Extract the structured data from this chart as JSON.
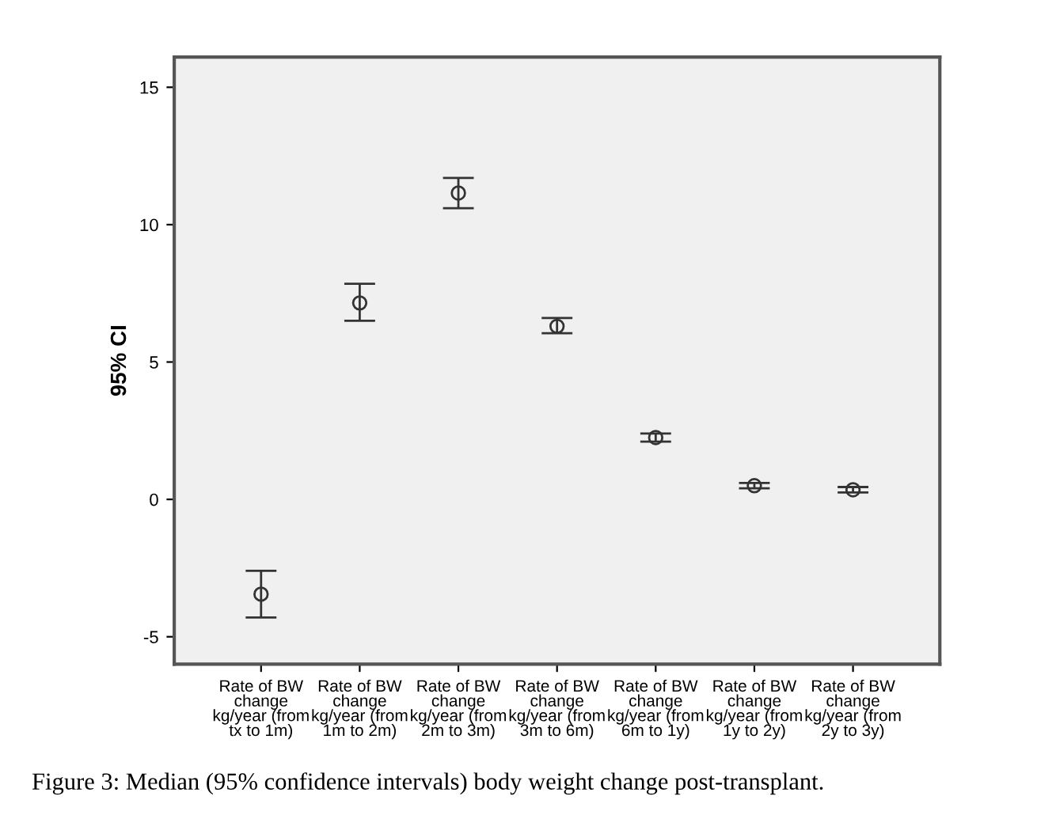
{
  "chart_data": {
    "type": "scatter",
    "ylabel": "95% CI",
    "categories": [
      "Rate of BW\nchange\nkg/year (from\ntx to 1m)",
      "Rate of BW\nchange\nkg/year (from\n1m to 2m)",
      "Rate of BW\nchange\nkg/year (from\n2m to 3m)",
      "Rate of BW\nchange\nkg/year (from\n3m to 6m)",
      "Rate of BW\nchange\nkg/year (from\n6m to 1y)",
      "Rate of BW\nchange\nkg/year (from\n1y to 2y)",
      "Rate of BW\nchange\nkg/year (from\n2y to 3y)"
    ],
    "values": [
      -3.45,
      7.15,
      11.15,
      6.3,
      2.25,
      0.5,
      0.35
    ],
    "errors": [
      [
        -4.3,
        -2.6
      ],
      [
        6.5,
        7.85
      ],
      [
        10.6,
        11.7
      ],
      [
        6.05,
        6.6
      ],
      [
        2.1,
        2.4
      ],
      [
        0.4,
        0.6
      ],
      [
        0.25,
        0.45
      ]
    ],
    "color": "#333333",
    "marker": "circle",
    "grid": false,
    "legend": false,
    "ylim": [
      -6.0,
      16.1
    ],
    "yticks": [
      -5,
      0,
      5,
      10,
      15
    ],
    "annotations": [
      "Figure 3: Median (95% confidence intervals) body weight change post-transplant."
    ]
  }
}
